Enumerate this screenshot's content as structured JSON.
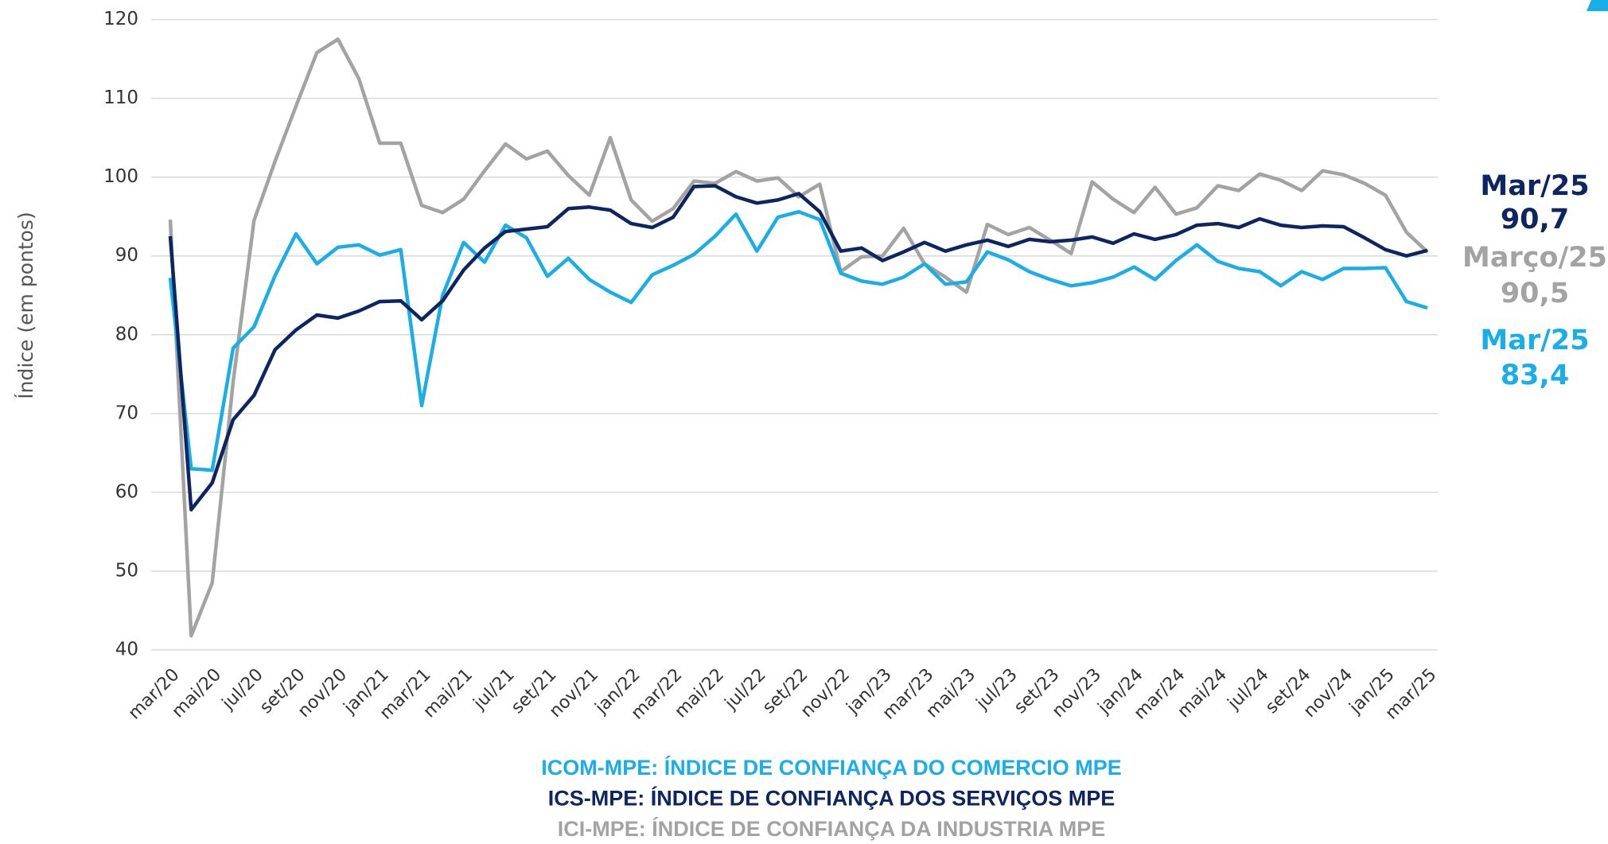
{
  "chart_data": {
    "type": "line",
    "y_label": "Índice (em pontos)",
    "categories": [
      "mar/20",
      null,
      "mai/20",
      null,
      "jul/20",
      null,
      "set/20",
      null,
      "nov/20",
      null,
      "jan/21",
      null,
      "mar/21",
      null,
      "mai/21",
      null,
      "jul/21",
      null,
      "set/21",
      null,
      "nov/21",
      null,
      "jan/22",
      null,
      "mar/22",
      null,
      "mai/22",
      null,
      "jul/22",
      null,
      "set/22",
      null,
      "nov/22",
      null,
      "jan/23",
      null,
      "mar/23",
      null,
      "mai/23",
      null,
      "jul/23",
      null,
      "set/23",
      null,
      "nov/23",
      null,
      "jan/24",
      null,
      "mar/24",
      null,
      "mai/24",
      null,
      "jul/24",
      null,
      "set/24",
      null,
      "nov/24",
      null,
      "jan/25",
      null,
      "mar/25"
    ],
    "series": [
      {
        "name": "ICOM-MPE: ÍNDICE DE CONFIANÇA DO COMERCIO MPE",
        "color": "#1aaee8",
        "values": [
          87.2,
          63,
          62.8,
          78.3,
          81,
          87.5,
          92.8,
          89,
          91.1,
          91.4,
          90.1,
          90.8,
          71,
          85,
          91.7,
          89.2,
          93.9,
          92.3,
          87.4,
          89.7,
          87,
          85.4,
          84.1,
          87.6,
          88.8,
          90.2,
          92.5,
          95.3,
          90.6,
          94.9,
          95.6,
          94.6,
          87.8,
          86.8,
          86.4,
          87.3,
          89,
          86.4,
          86.7,
          90.5,
          89.5,
          88,
          87,
          86.2,
          86.6,
          87.3,
          88.6,
          87,
          89.4,
          91.4,
          89.3,
          88.4,
          88,
          86.2,
          88,
          87,
          88.4,
          88.4,
          88.5,
          84.2,
          83.4
        ]
      },
      {
        "name": "ICS-MPE: ÍNDICE DE CONFIANÇA DOS SERVIÇOS MPE",
        "color": "#0d2561",
        "values": [
          92.5,
          57.8,
          61.2,
          69.2,
          72.3,
          78.1,
          80.6,
          82.5,
          82.1,
          83,
          84.2,
          84.3,
          81.9,
          84.3,
          88.2,
          91,
          93.1,
          93.4,
          93.7,
          96,
          96.2,
          95.8,
          94.1,
          93.6,
          94.9,
          98.8,
          98.9,
          97.5,
          96.7,
          97.1,
          97.9,
          95.6,
          90.6,
          91,
          89.4,
          90.5,
          91.7,
          90.6,
          91.4,
          92,
          91.2,
          92.1,
          91.8,
          92,
          92.4,
          91.6,
          92.8,
          92.1,
          92.7,
          93.9,
          94.1,
          93.6,
          94.7,
          93.9,
          93.6,
          93.8,
          93.7,
          92.3,
          90.8,
          90,
          90.7
        ]
      },
      {
        "name": "ICI-MPE: ÍNDICE DE CONFIANÇA DA INDUSTRIA MPE",
        "color": "#a3a3a3",
        "values": [
          94.6,
          41.8,
          48.5,
          74,
          94.5,
          102,
          109,
          115.8,
          117.5,
          112.5,
          104.3,
          104.3,
          96.4,
          95.5,
          97.2,
          100.8,
          104.2,
          102.3,
          103.3,
          100.2,
          97.7,
          105,
          97.1,
          94.4,
          96,
          99.5,
          99.2,
          100.7,
          99.5,
          99.9,
          97.5,
          99.1,
          88,
          89.9,
          90,
          93.5,
          89,
          87.3,
          85.4,
          94,
          92.7,
          93.6,
          92,
          90.3,
          99.4,
          97.2,
          95.5,
          98.7,
          95.3,
          96.1,
          98.9,
          98.3,
          100.4,
          99.6,
          98.3,
          100.8,
          100.3,
          99.2,
          97.7,
          93,
          90.5
        ]
      }
    ],
    "annotations": [
      {
        "lines": [
          "Mar/25",
          "90,7"
        ],
        "color": "#0d2561"
      },
      {
        "lines": [
          "Março/25",
          "90,5"
        ],
        "color": "#a3a3a3"
      },
      {
        "lines": [
          "Mar/25",
          "83,4"
        ],
        "color": "#1aaee8"
      }
    ],
    "ylim": [
      40,
      120
    ],
    "yticks": [
      40,
      50,
      60,
      70,
      80,
      90,
      100,
      110,
      120
    ],
    "grid": true
  }
}
